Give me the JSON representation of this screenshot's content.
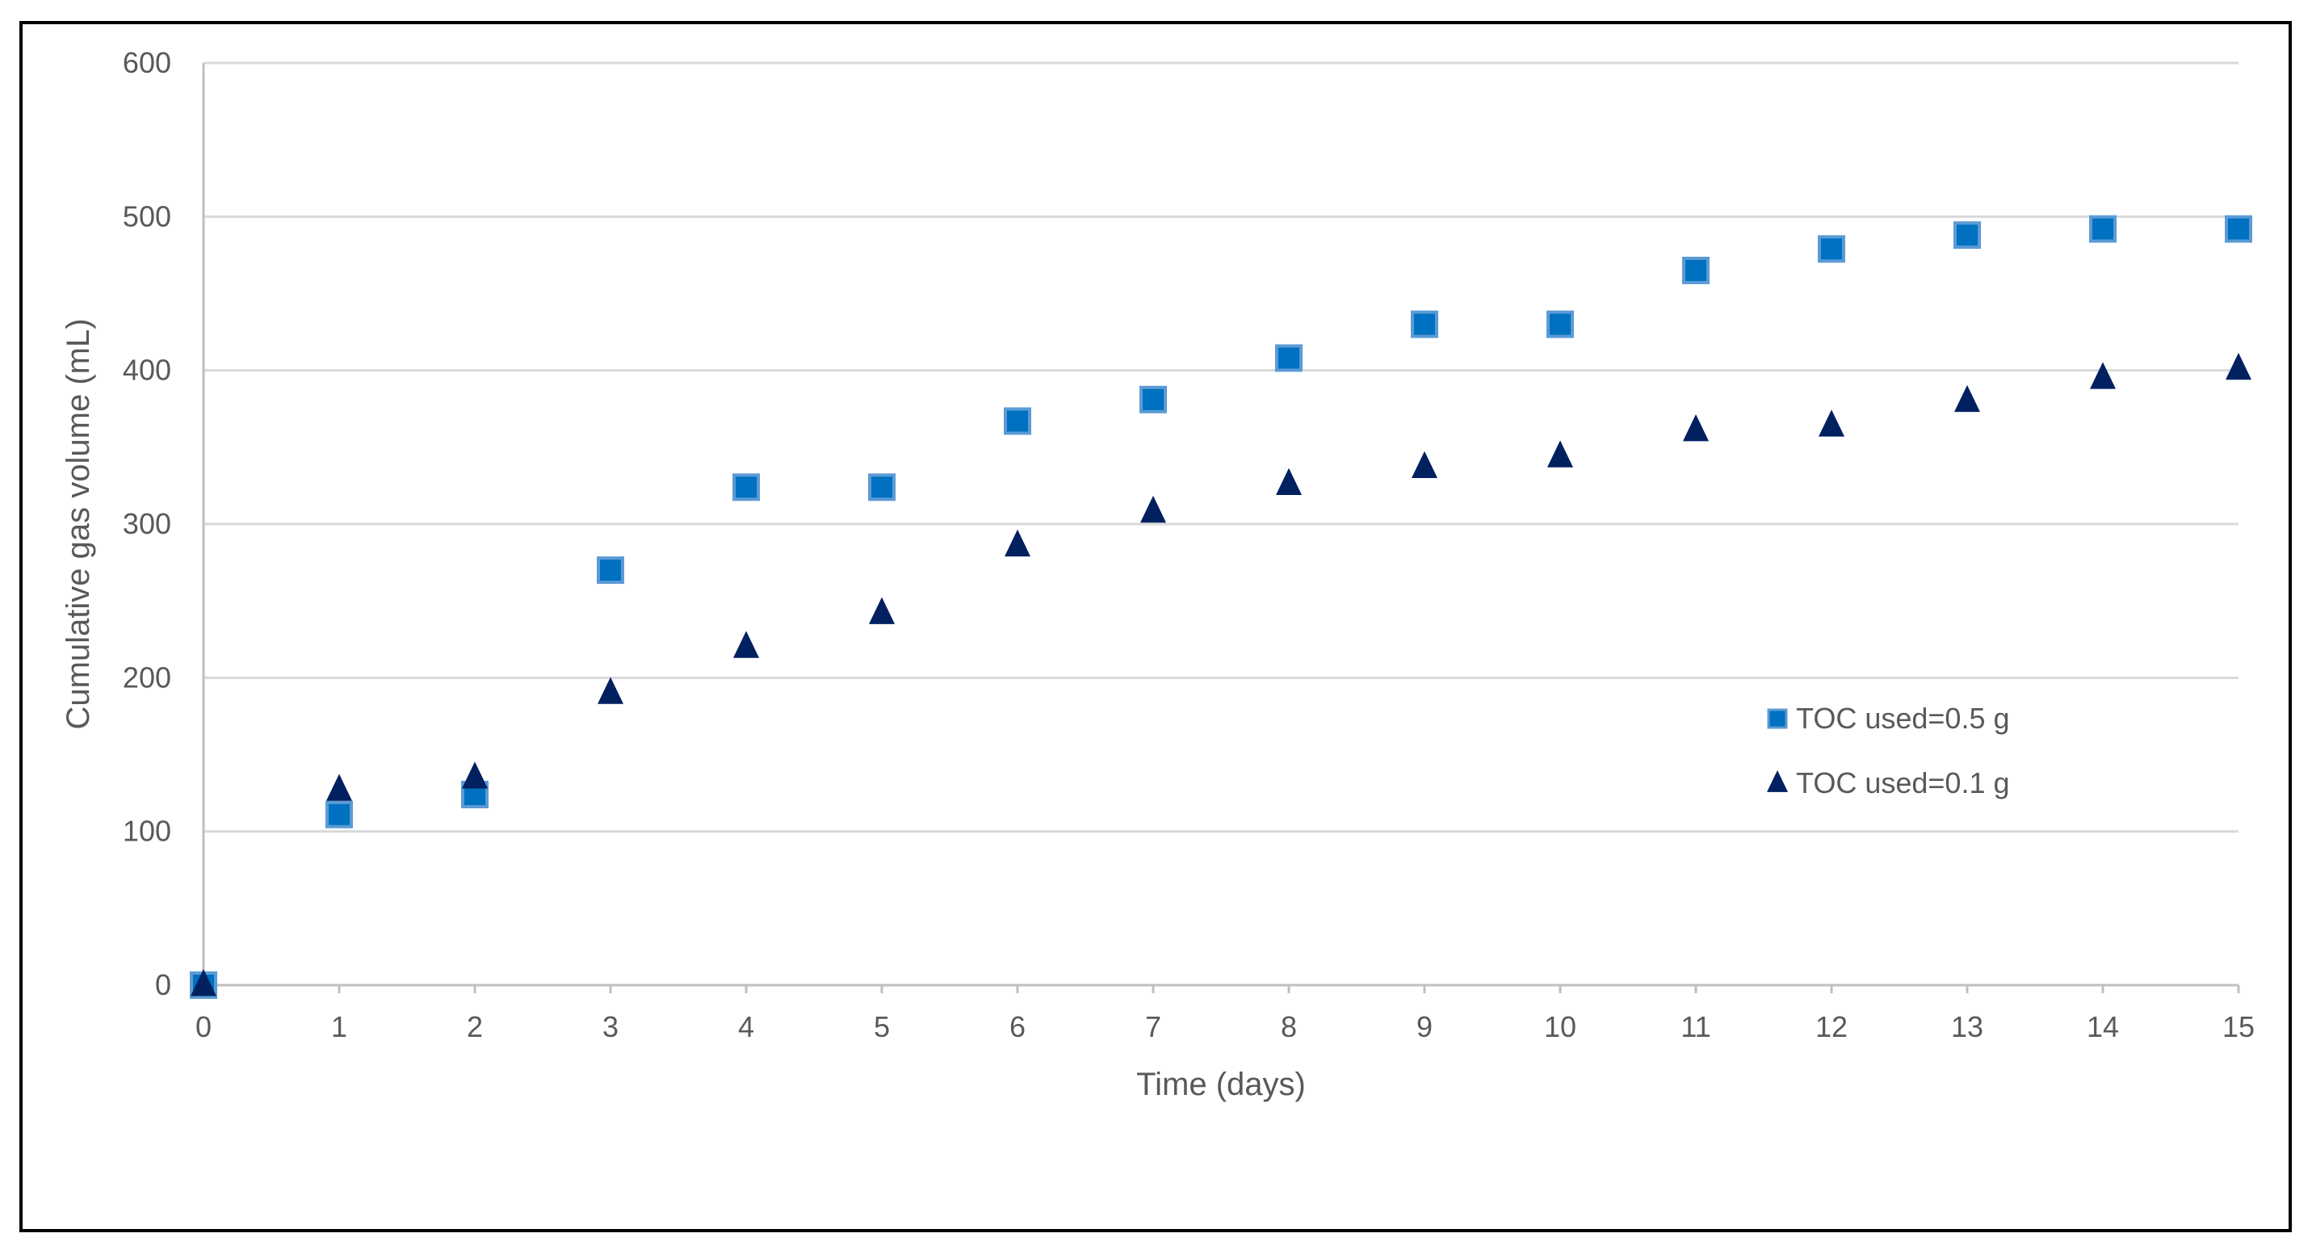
{
  "chart_data": {
    "type": "scatter",
    "title": "",
    "xlabel": "Time (days)",
    "ylabel": "Cumulative gas volume (mL)",
    "xlim": [
      0,
      15
    ],
    "ylim": [
      0,
      600
    ],
    "xticks": [
      0,
      1,
      2,
      3,
      4,
      5,
      6,
      7,
      8,
      9,
      10,
      11,
      12,
      13,
      14,
      15
    ],
    "yticks": [
      0,
      100,
      200,
      300,
      400,
      500,
      600
    ],
    "grid": "horizontal",
    "legend_position": "right",
    "series": [
      {
        "name": "TOC used=0.5 g",
        "marker": "square",
        "color": "#0070C0",
        "edge_color": "#5B9BD5",
        "x": [
          0,
          1,
          2,
          3,
          4,
          5,
          6,
          7,
          8,
          9,
          10,
          11,
          12,
          13,
          14,
          15
        ],
        "y": [
          0,
          111,
          124,
          270,
          324,
          324,
          367,
          381,
          408,
          430,
          430,
          465,
          479,
          488,
          492,
          492
        ]
      },
      {
        "name": "TOC used=0.1 g",
        "marker": "triangle",
        "color": "#002060",
        "x": [
          0,
          1,
          2,
          3,
          4,
          5,
          6,
          7,
          8,
          9,
          10,
          11,
          12,
          13,
          14,
          15
        ],
        "y": [
          0,
          127,
          135,
          190,
          220,
          242,
          286,
          308,
          326,
          337,
          344,
          361,
          364,
          380,
          395,
          401
        ]
      }
    ]
  },
  "colors": {
    "grid": "#D9D9D9",
    "axis": "#BFBFBF",
    "text": "#595959"
  }
}
